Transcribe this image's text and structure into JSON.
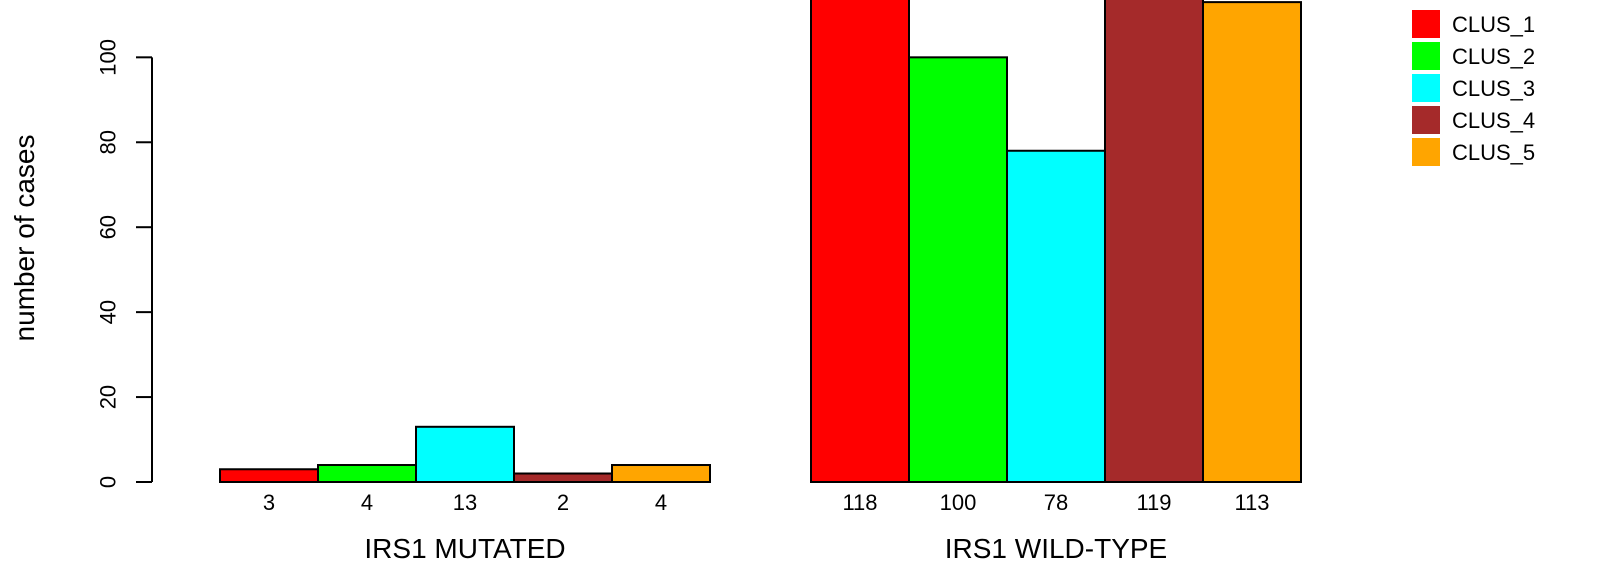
{
  "chart_data": {
    "type": "bar",
    "title": "",
    "ylabel": "number of cases",
    "ylim": [
      0,
      113.5
    ],
    "yticks": [
      "0",
      "20",
      "40",
      "60",
      "80",
      "100"
    ],
    "groups": [
      {
        "name": "IRS1 MUTATED",
        "values": [
          3,
          4,
          13,
          2,
          4
        ],
        "labels": [
          "3",
          "4",
          "13",
          "2",
          "4"
        ]
      },
      {
        "name": "IRS1 WILD-TYPE",
        "values": [
          118,
          100,
          78,
          119,
          113
        ],
        "labels": [
          "118",
          "100",
          "78",
          "119",
          "113"
        ]
      }
    ],
    "series": [
      {
        "name": "CLUS_1",
        "color": "#ff0000"
      },
      {
        "name": "CLUS_2",
        "color": "#00ff00"
      },
      {
        "name": "CLUS_3",
        "color": "#00ffff"
      },
      {
        "name": "CLUS_4",
        "color": "#a52a2a"
      },
      {
        "name": "CLUS_5",
        "color": "#ffa500"
      }
    ],
    "legend_position": "top-right",
    "grid": false
  }
}
